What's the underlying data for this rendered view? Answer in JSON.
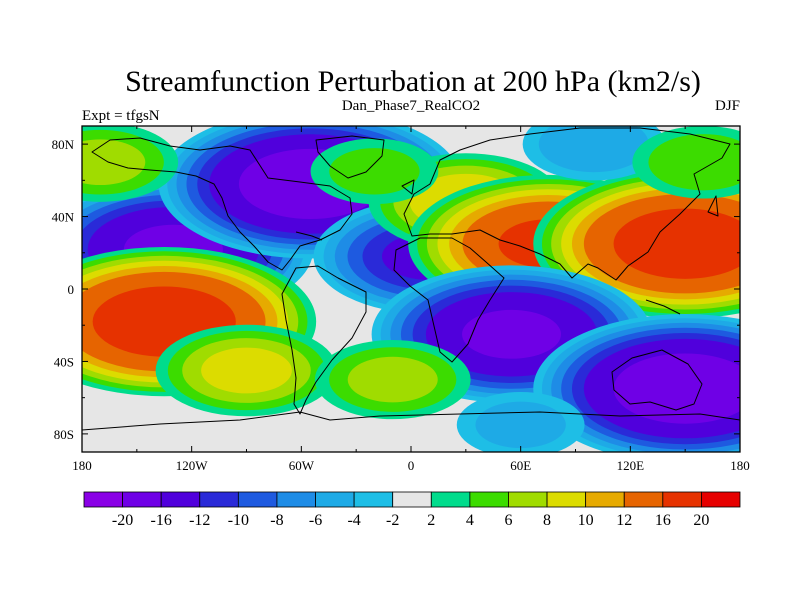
{
  "chart_data": {
    "type": "heatmap",
    "title": "Streamfunction Perturbation at 200 hPa (km2/s)",
    "subtitle": "Dan_Phase7_RealCO2",
    "left_label": "Expt = tfgsN",
    "right_label": "DJF",
    "x_axis": {
      "range": [
        -180,
        180
      ],
      "ticks": [
        {
          "value": -180,
          "label": "180"
        },
        {
          "value": -120,
          "label": "120W"
        },
        {
          "value": -60,
          "label": "60W"
        },
        {
          "value": 0,
          "label": "0"
        },
        {
          "value": 60,
          "label": "60E"
        },
        {
          "value": 120,
          "label": "120E"
        },
        {
          "value": 180,
          "label": "180"
        }
      ]
    },
    "y_axis": {
      "range": [
        -90,
        90
      ],
      "ticks": [
        {
          "value": 80,
          "label": "80N"
        },
        {
          "value": 40,
          "label": "40N"
        },
        {
          "value": 0,
          "label": "0"
        },
        {
          "value": -40,
          "label": "40S"
        },
        {
          "value": -80,
          "label": "80S"
        }
      ]
    },
    "colorbar": {
      "levels": [
        "-20",
        "-16",
        "-12",
        "-10",
        "-8",
        "-6",
        "-4",
        "-2",
        "2",
        "4",
        "6",
        "8",
        "10",
        "12",
        "16",
        "20"
      ],
      "colors": [
        "#8a00e6",
        "#6f00e6",
        "#5000dc",
        "#2a2ad8",
        "#1e5ae0",
        "#1e8ce6",
        "#1eaae6",
        "#1ebee6",
        "#e6e6e6",
        "#00dc8c",
        "#3cdc00",
        "#a0dc00",
        "#dcdc00",
        "#e6aa00",
        "#e66400",
        "#e63200",
        "#e60000"
      ]
    },
    "anomalies": [
      {
        "lon": -130,
        "lat": 22,
        "value": -16
      },
      {
        "lon": -55,
        "lat": 58,
        "value": -18
      },
      {
        "lon": 10,
        "lat": 18,
        "value": -12
      },
      {
        "lon": 30,
        "lat": 48,
        "value": 9
      },
      {
        "lon": 75,
        "lat": 25,
        "value": 16
      },
      {
        "lon": 150,
        "lat": 25,
        "value": 18
      },
      {
        "lon": -135,
        "lat": -18,
        "value": 18
      },
      {
        "lon": -90,
        "lat": -45,
        "value": 8
      },
      {
        "lon": 55,
        "lat": -25,
        "value": -16
      },
      {
        "lon": 150,
        "lat": -55,
        "value": -18
      },
      {
        "lon": -10,
        "lat": -50,
        "value": 6
      },
      {
        "lon": -170,
        "lat": 70,
        "value": 6
      },
      {
        "lon": 100,
        "lat": 80,
        "value": -5
      },
      {
        "lon": 60,
        "lat": -75,
        "value": -4
      },
      {
        "lon": -20,
        "lat": 65,
        "value": 4
      },
      {
        "lon": 160,
        "lat": 70,
        "value": 5
      }
    ]
  }
}
